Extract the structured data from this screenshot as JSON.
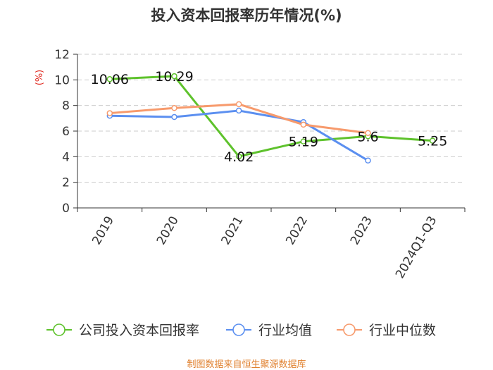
{
  "chart_data": {
    "type": "line",
    "title": "投入资本回报率历年情况(%)",
    "ylabel": "(%)",
    "categories": [
      "2019",
      "2020",
      "2021",
      "2022",
      "2023",
      "2024Q1-Q3"
    ],
    "ylim": [
      0,
      12
    ],
    "yticks": [
      0,
      2,
      4,
      6,
      8,
      10,
      12
    ],
    "grid": true,
    "legend_position": "bottom",
    "series": [
      {
        "name": "公司投入资本回报率",
        "color": "#5ec22c",
        "values": [
          10.06,
          10.29,
          4.02,
          5.19,
          5.6,
          5.25
        ],
        "show_labels": true
      },
      {
        "name": "行业均值",
        "color": "#5b8ff0",
        "values": [
          7.2,
          7.1,
          7.6,
          6.7,
          3.7,
          null
        ],
        "show_labels": false
      },
      {
        "name": "行业中位数",
        "color": "#f79a6c",
        "values": [
          7.4,
          7.8,
          8.1,
          6.5,
          5.85,
          null
        ],
        "show_labels": false
      }
    ]
  },
  "footer": {
    "source": "制图数据来自恒生聚源数据库",
    "source_color": "#e0812f"
  },
  "colors": {
    "title": "#333333",
    "axis_text": "#333333",
    "ylabel": "#e0281e",
    "grid": "#cccccc"
  }
}
